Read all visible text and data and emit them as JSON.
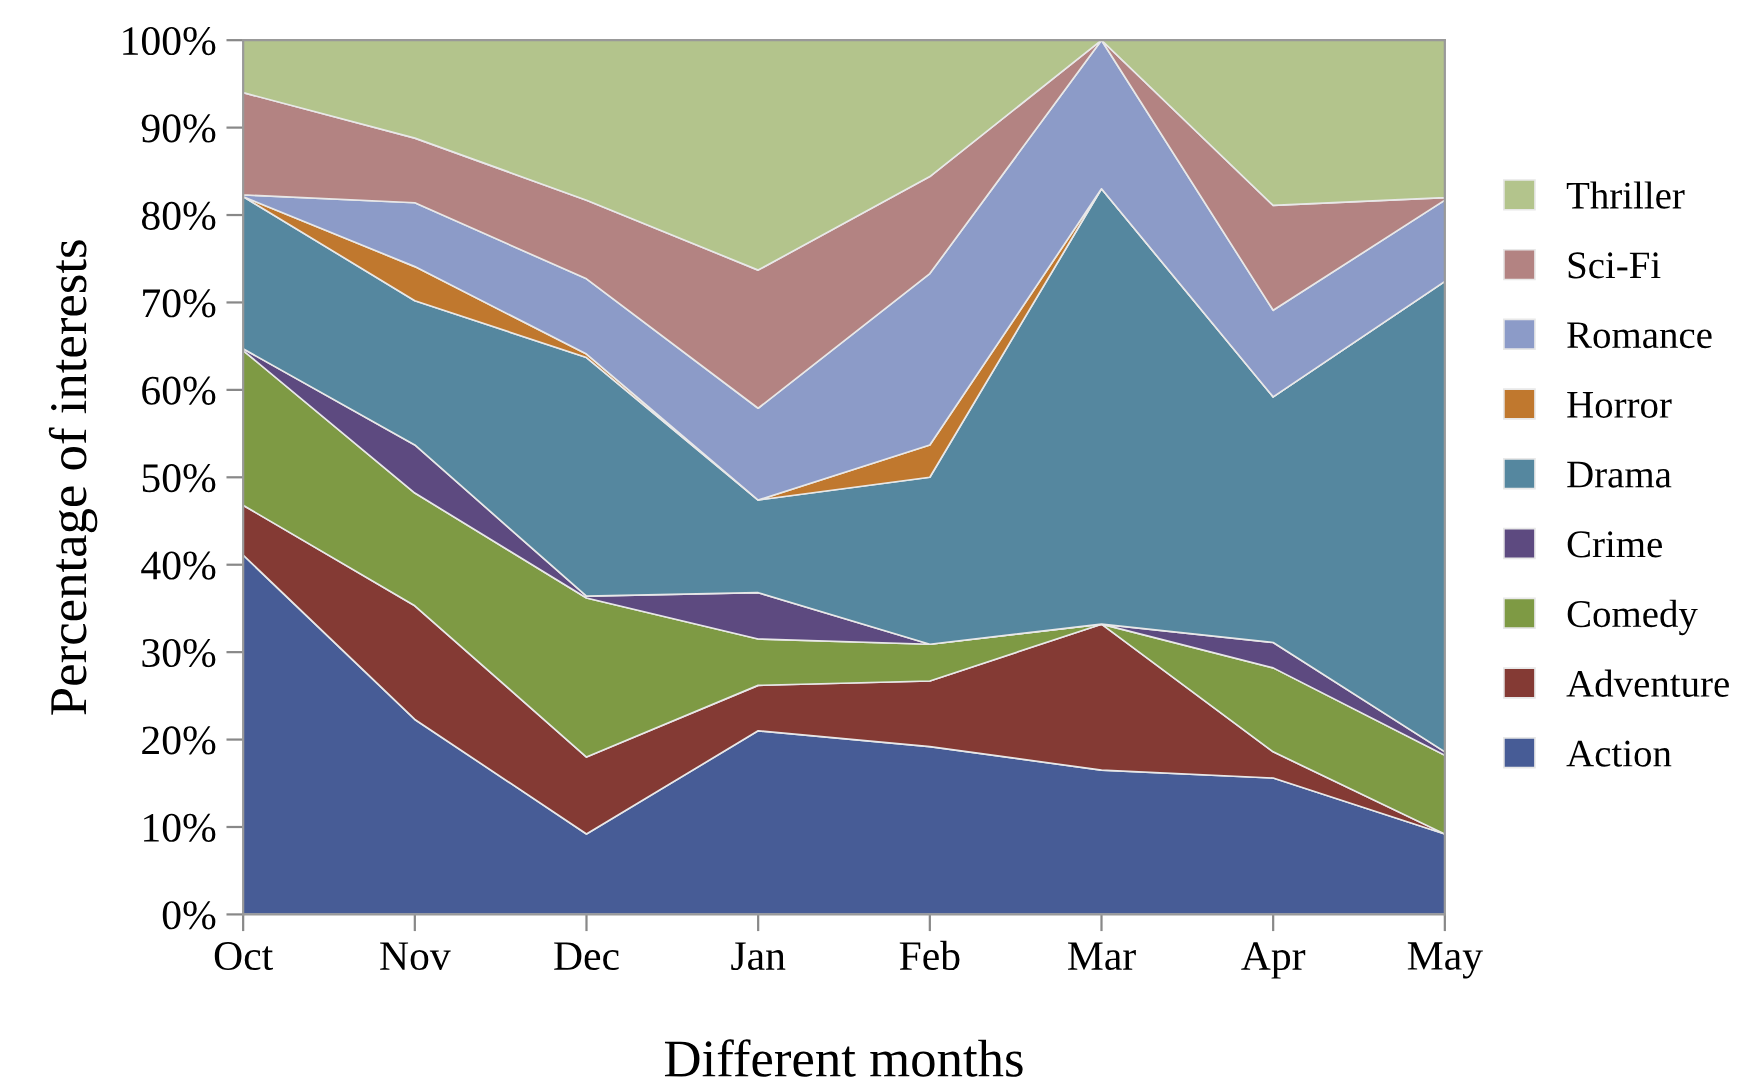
{
  "chart_data": {
    "type": "area",
    "stacked": true,
    "xlabel": "Different months",
    "ylabel": "Percentage of interests",
    "categories": [
      "Oct",
      "Nov",
      "Dec",
      "Jan",
      "Feb",
      "Mar",
      "Apr",
      "May"
    ],
    "ylim": [
      0,
      100
    ],
    "yticks": [
      {
        "value": 0,
        "label": "0%"
      },
      {
        "value": 10,
        "label": "10%"
      },
      {
        "value": 20,
        "label": "20%"
      },
      {
        "value": 30,
        "label": "30%"
      },
      {
        "value": 40,
        "label": "40%"
      },
      {
        "value": 50,
        "label": "50%"
      },
      {
        "value": 60,
        "label": "60%"
      },
      {
        "value": 70,
        "label": "70%"
      },
      {
        "value": 80,
        "label": "80%"
      },
      {
        "value": 90,
        "label": "90%"
      },
      {
        "value": 100,
        "label": "100%"
      }
    ],
    "grid": false,
    "legend": "right",
    "series": [
      {
        "name": "Action",
        "color": "#475c96",
        "values": [
          41.1,
          22.3,
          9.2,
          21.0,
          19.2,
          16.5,
          15.6,
          9.2
        ]
      },
      {
        "name": "Adventure",
        "color": "#843a34",
        "values": [
          5.7,
          13.0,
          8.8,
          5.2,
          7.5,
          16.7,
          3.0,
          0
        ]
      },
      {
        "name": "Comedy",
        "color": "#7e9a44",
        "values": [
          17.7,
          12.9,
          18.2,
          5.3,
          4.2,
          0,
          9.6,
          9.0
        ]
      },
      {
        "name": "Crime",
        "color": "#5d4a80",
        "values": [
          0.2,
          5.5,
          0.2,
          5.3,
          0,
          0,
          2.9,
          0.4
        ]
      },
      {
        "name": "Drama",
        "color": "#55879f",
        "values": [
          17.4,
          16.5,
          27.3,
          10.6,
          19.1,
          49.8,
          28.1,
          53.8
        ]
      },
      {
        "name": "Horror",
        "color": "#c0782e",
        "values": [
          0,
          3.9,
          0.4,
          0,
          3.7,
          0,
          0,
          0
        ]
      },
      {
        "name": "Romance",
        "color": "#8c9bc8",
        "values": [
          0.2,
          7.3,
          8.6,
          10.5,
          19.6,
          17.0,
          9.9,
          9.3
        ]
      },
      {
        "name": "Sci-Fi",
        "color": "#b38382",
        "values": [
          11.7,
          7.4,
          9.0,
          15.8,
          11.1,
          0,
          12.0,
          0.3
        ]
      },
      {
        "name": "Thriller",
        "color": "#b3c48c",
        "values": [
          6.0,
          11.2,
          18.3,
          26.3,
          15.6,
          0,
          18.9,
          18.0
        ]
      }
    ]
  }
}
